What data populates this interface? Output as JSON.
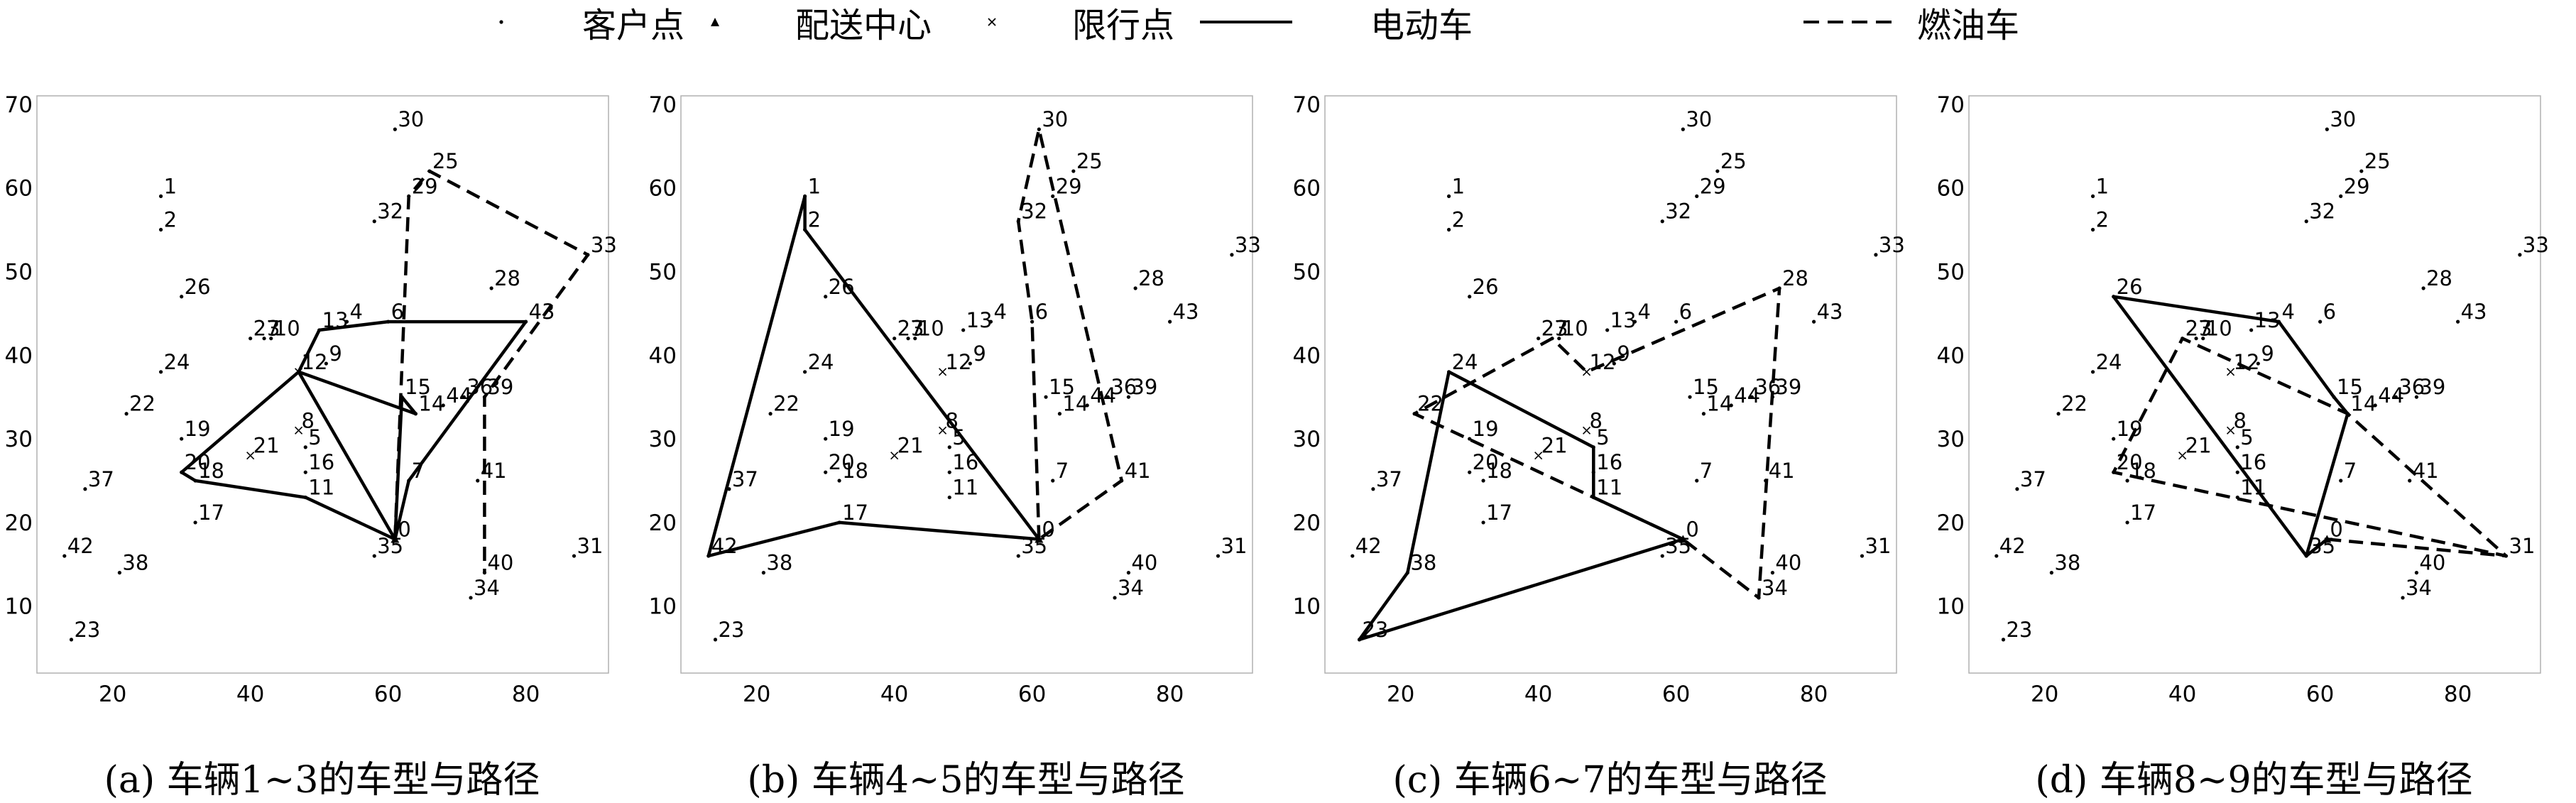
{
  "legend": {
    "customer": "客户点",
    "depot": "配送中心",
    "restricted": "限行点",
    "electric": "电动车",
    "fuel": "燃油车"
  },
  "chart_data": [
    {
      "type": "scatter",
      "caption": "(a) 车辆1~3的车型与路径",
      "xlim": [
        9,
        92
      ],
      "ylim": [
        2,
        71
      ],
      "xticks": [
        20,
        40,
        60,
        80
      ],
      "yticks": [
        10,
        20,
        30,
        40,
        50,
        60,
        70
      ],
      "series": [
        {
          "name": "电动车",
          "type": "electric",
          "route": [
            0,
            7,
            43,
            6,
            13,
            12,
            14,
            15,
            0
          ]
        },
        {
          "name": "电动车",
          "type": "electric",
          "route": [
            0,
            12,
            20,
            18,
            11,
            0
          ]
        },
        {
          "name": "燃油车",
          "type": "fuel",
          "route": [
            0,
            29,
            25,
            33,
            39,
            40
          ]
        }
      ]
    },
    {
      "type": "scatter",
      "caption": "(b) 车辆4~5的车型与路径",
      "xlim": [
        9,
        92
      ],
      "ylim": [
        2,
        71
      ],
      "xticks": [
        20,
        40,
        60,
        80
      ],
      "yticks": [
        10,
        20,
        30,
        40,
        50,
        60,
        70
      ],
      "series": [
        {
          "name": "电动车",
          "type": "electric",
          "route": [
            0,
            17,
            42,
            1,
            2,
            0
          ]
        },
        {
          "name": "燃油车",
          "type": "fuel",
          "route": [
            0,
            6,
            32,
            30,
            41,
            0
          ]
        }
      ]
    },
    {
      "type": "scatter",
      "caption": "(c) 车辆6~7的车型与路径",
      "xlim": [
        9,
        92
      ],
      "ylim": [
        2,
        71
      ],
      "xticks": [
        20,
        40,
        60,
        80
      ],
      "yticks": [
        10,
        20,
        30,
        40,
        50,
        60,
        70
      ],
      "series": [
        {
          "name": "电动车",
          "type": "electric",
          "route": [
            0,
            23,
            38,
            24,
            5,
            11,
            0
          ]
        },
        {
          "name": "燃油车",
          "type": "fuel",
          "route": [
            0,
            22,
            3,
            12,
            28,
            34,
            0
          ]
        }
      ]
    },
    {
      "type": "scatter",
      "caption": "(d) 车辆8~9的车型与路径",
      "xlim": [
        9,
        92
      ],
      "ylim": [
        2,
        71
      ],
      "xticks": [
        20,
        40,
        60,
        80
      ],
      "yticks": [
        10,
        20,
        30,
        40,
        50,
        60,
        70
      ],
      "series": [
        {
          "name": "电动车",
          "type": "electric",
          "route": [
            0,
            35,
            26,
            4,
            15,
            14,
            35
          ]
        },
        {
          "name": "燃油车",
          "type": "fuel",
          "route": [
            0,
            31,
            20,
            27,
            14,
            31
          ]
        }
      ]
    }
  ],
  "customers": [
    {
      "id": "0",
      "x": 61,
      "y": 18,
      "kind": "depot"
    },
    {
      "id": "1",
      "x": 27,
      "y": 59
    },
    {
      "id": "2",
      "x": 27,
      "y": 55
    },
    {
      "id": "3",
      "x": 42,
      "y": 42
    },
    {
      "id": "4",
      "x": 54,
      "y": 44
    },
    {
      "id": "5",
      "x": 48,
      "y": 29
    },
    {
      "id": "6",
      "x": 60,
      "y": 44
    },
    {
      "id": "7",
      "x": 63,
      "y": 25
    },
    {
      "id": "8",
      "x": 47,
      "y": 31,
      "kind": "restricted"
    },
    {
      "id": "9",
      "x": 51,
      "y": 39
    },
    {
      "id": "10",
      "x": 43,
      "y": 42
    },
    {
      "id": "11",
      "x": 48,
      "y": 23
    },
    {
      "id": "12",
      "x": 47,
      "y": 38,
      "kind": "restricted"
    },
    {
      "id": "13",
      "x": 50,
      "y": 43
    },
    {
      "id": "14",
      "x": 64,
      "y": 33
    },
    {
      "id": "15",
      "x": 62,
      "y": 35
    },
    {
      "id": "16",
      "x": 48,
      "y": 26
    },
    {
      "id": "17",
      "x": 32,
      "y": 20
    },
    {
      "id": "18",
      "x": 32,
      "y": 25
    },
    {
      "id": "19",
      "x": 30,
      "y": 30
    },
    {
      "id": "20",
      "x": 30,
      "y": 26
    },
    {
      "id": "21",
      "x": 40,
      "y": 28,
      "kind": "restricted"
    },
    {
      "id": "22",
      "x": 22,
      "y": 33
    },
    {
      "id": "23",
      "x": 14,
      "y": 6
    },
    {
      "id": "24",
      "x": 27,
      "y": 38
    },
    {
      "id": "25",
      "x": 66,
      "y": 62
    },
    {
      "id": "26",
      "x": 30,
      "y": 47
    },
    {
      "id": "27",
      "x": 40,
      "y": 42
    },
    {
      "id": "28",
      "x": 75,
      "y": 48
    },
    {
      "id": "29",
      "x": 63,
      "y": 59
    },
    {
      "id": "30",
      "x": 61,
      "y": 67
    },
    {
      "id": "31",
      "x": 87,
      "y": 16
    },
    {
      "id": "32",
      "x": 58,
      "y": 56
    },
    {
      "id": "33",
      "x": 89,
      "y": 52
    },
    {
      "id": "34",
      "x": 72,
      "y": 11
    },
    {
      "id": "35",
      "x": 58,
      "y": 16
    },
    {
      "id": "36",
      "x": 71,
      "y": 35
    },
    {
      "id": "37",
      "x": 16,
      "y": 24
    },
    {
      "id": "38",
      "x": 21,
      "y": 14
    },
    {
      "id": "39",
      "x": 74,
      "y": 35
    },
    {
      "id": "40",
      "x": 74,
      "y": 14
    },
    {
      "id": "41",
      "x": 73,
      "y": 25
    },
    {
      "id": "42",
      "x": 13,
      "y": 16
    },
    {
      "id": "43",
      "x": 80,
      "y": 44
    },
    {
      "id": "44",
      "x": 68,
      "y": 34
    }
  ]
}
